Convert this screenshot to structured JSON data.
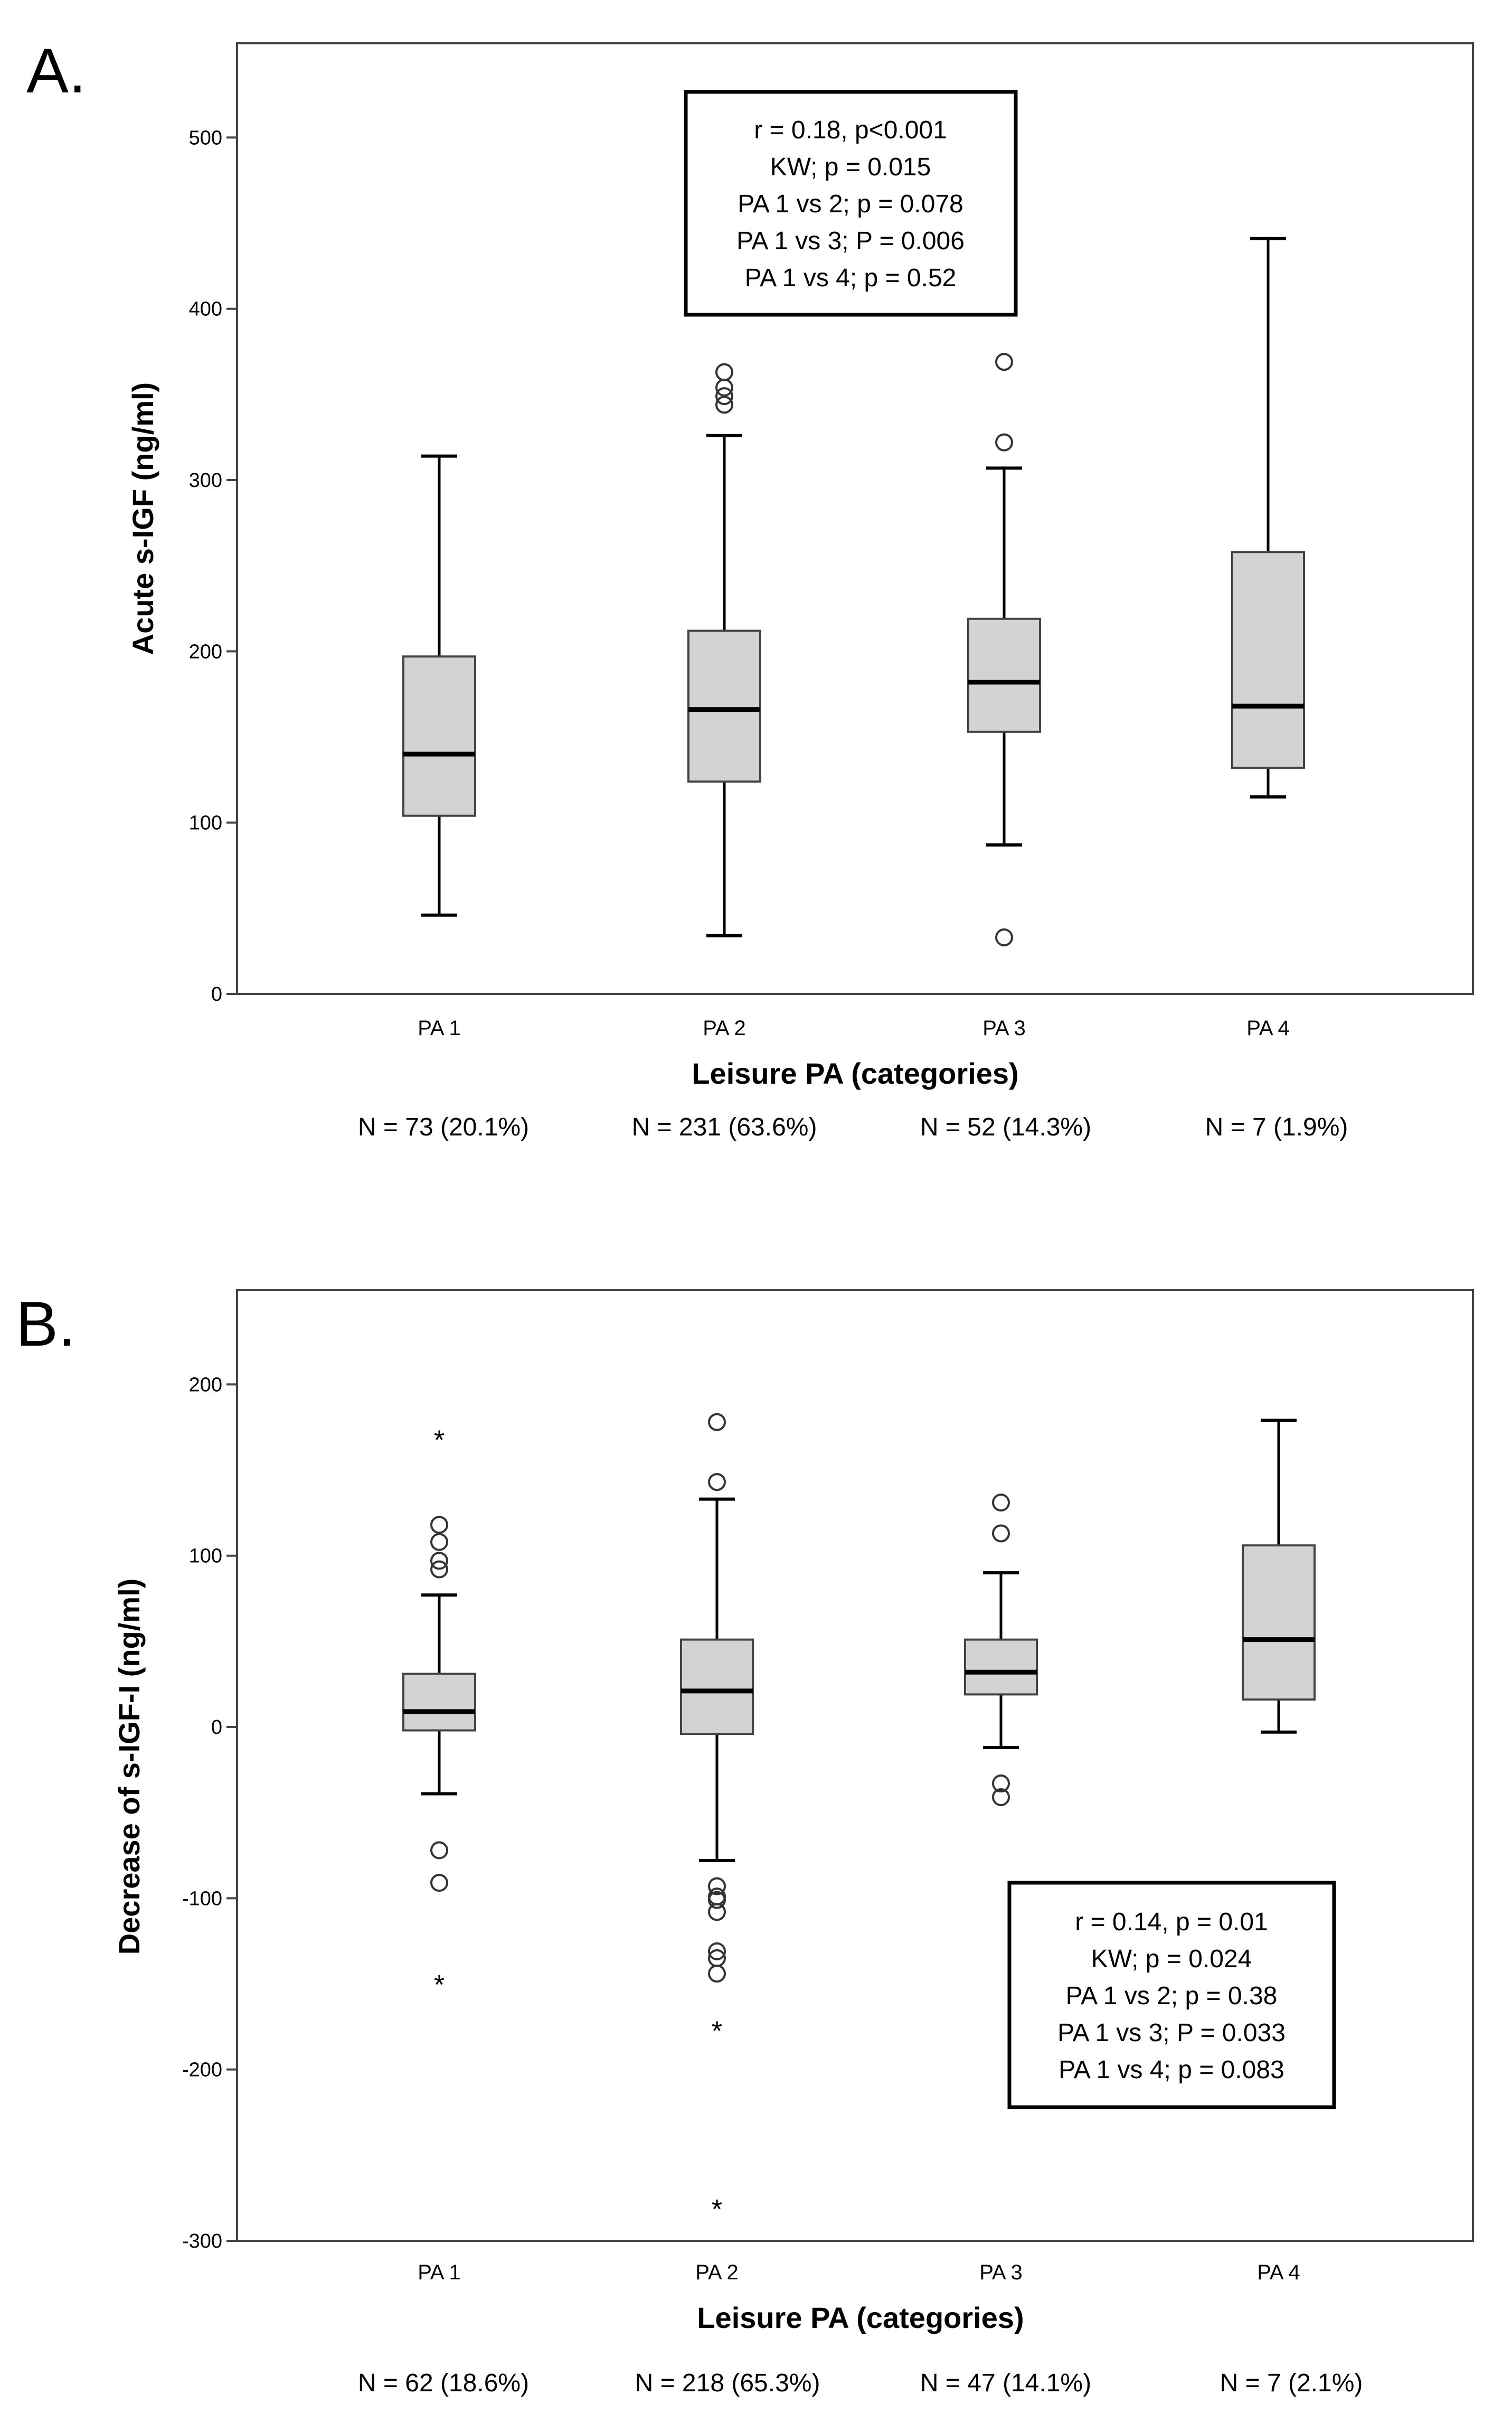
{
  "chart_data": [
    {
      "type": "box",
      "panel_label": "A.",
      "xlabel": "Leisure PA (categories)",
      "ylabel": "Acute s-IGF (ng/ml)",
      "ylim": [
        0,
        555
      ],
      "yticks": [
        0,
        100,
        200,
        300,
        400,
        500
      ],
      "categories": [
        "PA 1",
        "PA 2",
        "PA 3",
        "PA 4"
      ],
      "n_labels": [
        "N = 73 (20.1%)",
        "N = 231 (63.6%)",
        "N = 52 (14.3%)",
        "N = 7 (1.9%)"
      ],
      "boxes": [
        {
          "whisker_low": 46,
          "q1": 104,
          "median": 140,
          "q3": 197,
          "whisker_high": 314,
          "outliers": [],
          "extremes": []
        },
        {
          "whisker_low": 34,
          "q1": 124,
          "median": 166,
          "q3": 212,
          "whisker_high": 326,
          "outliers": [
            344,
            349,
            354,
            363
          ],
          "extremes": []
        },
        {
          "whisker_low": 87,
          "q1": 153,
          "median": 182,
          "q3": 219,
          "whisker_high": 307,
          "outliers": [
            33,
            322,
            369
          ],
          "extremes": []
        },
        {
          "whisker_low": 115,
          "q1": 132,
          "median": 168,
          "q3": 258,
          "whisker_high": 441,
          "outliers": [],
          "extremes": []
        }
      ],
      "stats": [
        "r = 0.18, p<0.001",
        "KW; p = 0.015",
        "PA 1 vs 2; p = 0.078",
        "PA 1 vs 3; P = 0.006",
        "PA 1 vs 4; p = 0.52"
      ],
      "stats_position": "top-center"
    },
    {
      "type": "box",
      "panel_label": "B.",
      "xlabel": "Leisure PA (categories)",
      "ylabel": "Decrease of s-IGF-I (ng/ml)",
      "ylim": [
        -300,
        255
      ],
      "yticks": [
        -300,
        -200,
        -100,
        0,
        100,
        200
      ],
      "categories": [
        "PA 1",
        "PA 2",
        "PA 3",
        "PA 4"
      ],
      "n_labels": [
        "N = 62 (18.6%)",
        "N = 218 (65.3%)",
        "N = 47 (14.1%)",
        "N = 7 (2.1%)"
      ],
      "boxes": [
        {
          "whisker_low": -39,
          "q1": -2,
          "median": 9,
          "q3": 31,
          "whisker_high": 77,
          "outliers": [
            -91,
            -72,
            92,
            97,
            108,
            118
          ],
          "extremes": [
            -148,
            170
          ]
        },
        {
          "whisker_low": -78,
          "q1": -4,
          "median": 21,
          "q3": 51,
          "whisker_high": 133,
          "outliers": [
            -144,
            -135,
            -131,
            -108,
            -101,
            -99,
            -93,
            143,
            178
          ],
          "extremes": [
            -175,
            -279
          ]
        },
        {
          "whisker_low": -12,
          "q1": 19,
          "median": 32,
          "q3": 51,
          "whisker_high": 90,
          "outliers": [
            -41,
            -33,
            113,
            131
          ],
          "extremes": []
        },
        {
          "whisker_low": -3,
          "q1": 16,
          "median": 51,
          "q3": 106,
          "whisker_high": 179,
          "outliers": [],
          "extremes": []
        }
      ],
      "stats": [
        "r = 0.14, p = 0.01",
        "KW; p = 0.024",
        "PA 1 vs 2; p = 0.38",
        "PA 1 vs 3; P = 0.033",
        "PA 1 vs 4; p = 0.083"
      ],
      "stats_position": "bottom-right"
    }
  ]
}
